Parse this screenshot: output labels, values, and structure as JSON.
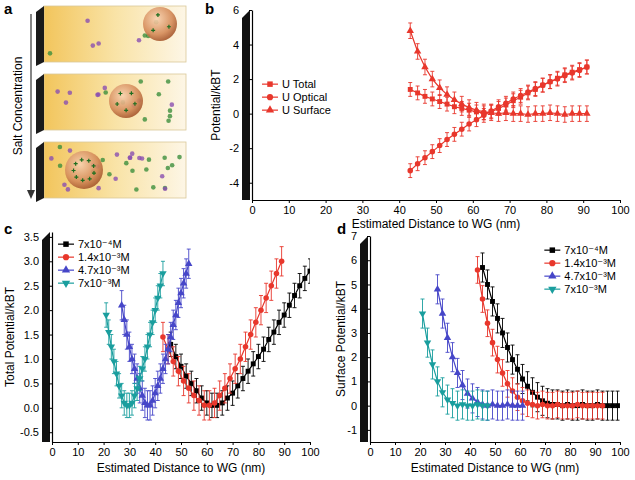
{
  "diagram": {
    "panel": "a",
    "label": "Salt Concentration"
  },
  "chart_data": [
    {
      "type": "line",
      "panel": "b",
      "x_label": "Estimated Distance to WG (nm)",
      "y_label": "Potential/kBT",
      "xlim": [
        0,
        100
      ],
      "xticks": [
        0,
        10,
        20,
        30,
        40,
        50,
        60,
        70,
        80,
        90,
        100
      ],
      "ylim": [
        -5,
        6
      ],
      "yticks": [
        -4,
        -2,
        0,
        2,
        4,
        6
      ],
      "legend": "upper left",
      "series": [
        {
          "name": "U Total",
          "color": "#e8372c",
          "marker": "square",
          "error": 0.4,
          "x": [
            43,
            45,
            47,
            49,
            51,
            53,
            55,
            57,
            59,
            61,
            63,
            65,
            67,
            69,
            71,
            73,
            75,
            77,
            79,
            81,
            83,
            85,
            87,
            89,
            91
          ],
          "values": [
            1.4,
            1.2,
            1.0,
            0.85,
            0.7,
            0.55,
            0.4,
            0.3,
            0.2,
            0.1,
            0.05,
            0.1,
            0.3,
            0.5,
            0.75,
            0.95,
            1.2,
            1.4,
            1.65,
            1.85,
            2.05,
            2.25,
            2.4,
            2.55,
            2.7
          ]
        },
        {
          "name": "U Optical",
          "color": "#e8372c",
          "marker": "circle",
          "error": 0.4,
          "x": [
            43,
            45,
            47,
            49,
            51,
            53,
            55,
            57,
            59,
            61,
            63,
            65,
            67,
            69,
            71,
            73,
            75,
            77,
            79,
            81,
            83,
            85,
            87,
            89,
            91
          ],
          "values": [
            -3.3,
            -2.9,
            -2.55,
            -2.2,
            -1.85,
            -1.5,
            -1.2,
            -0.9,
            -0.6,
            -0.35,
            -0.1,
            0.15,
            0.4,
            0.6,
            0.85,
            1.05,
            1.25,
            1.45,
            1.65,
            1.85,
            2.0,
            2.2,
            2.35,
            2.5,
            2.7
          ]
        },
        {
          "name": "U Surface",
          "color": "#e8372c",
          "marker": "triangle",
          "error": 0.45,
          "x": [
            43,
            45,
            47,
            49,
            51,
            53,
            55,
            57,
            59,
            61,
            63,
            65,
            67,
            69,
            71,
            73,
            75,
            77,
            79,
            81,
            83,
            85,
            87,
            89,
            91
          ],
          "values": [
            4.8,
            3.6,
            2.7,
            2.0,
            1.5,
            1.1,
            0.8,
            0.55,
            0.35,
            0.2,
            0.1,
            0.05,
            0.0,
            0.05,
            0.0,
            0.0,
            -0.05,
            0.0,
            0.0,
            0.05,
            0.0,
            -0.05,
            0.0,
            0.0,
            0.0
          ]
        }
      ]
    },
    {
      "type": "line",
      "panel": "c",
      "x_label": "Estimated Distance to WG (nm)",
      "y_label": "Total Potential/kBT",
      "xlim": [
        0,
        100
      ],
      "xticks": [
        0,
        10,
        20,
        30,
        40,
        50,
        60,
        70,
        80,
        90,
        100
      ],
      "ylim": [
        -0.7,
        3.6
      ],
      "yticks": [
        -0.5,
        {
          "value": 0,
          "label": "0.0"
        },
        0.5,
        {
          "value": 1,
          "label": "1.0"
        },
        1.5,
        {
          "value": 2,
          "label": "2.0"
        },
        2.5,
        {
          "value": 3,
          "label": "3.0"
        },
        3.5
      ],
      "legend": "upper left",
      "series": [
        {
          "name": "7x10⁻⁴M",
          "color": "#000000",
          "marker": "square",
          "error": 0.25,
          "x": [
            46,
            48,
            50,
            52,
            54,
            56,
            58,
            60,
            62,
            64,
            66,
            68,
            70,
            72,
            74,
            76,
            78,
            80,
            82,
            84,
            86,
            88,
            90,
            92,
            94,
            96,
            98,
            100
          ],
          "values": [
            1.3,
            1.05,
            0.85,
            0.65,
            0.5,
            0.35,
            0.2,
            0.1,
            0.05,
            0.05,
            0.1,
            0.2,
            0.3,
            0.45,
            0.6,
            0.75,
            0.9,
            1.05,
            1.2,
            1.4,
            1.55,
            1.75,
            1.9,
            2.1,
            2.3,
            2.5,
            2.65,
            2.8
          ]
        },
        {
          "name": "1.4x10⁻³M",
          "color": "#e8372c",
          "marker": "circle",
          "error": 0.3,
          "x": [
            43,
            45,
            47,
            49,
            51,
            53,
            55,
            57,
            59,
            61,
            63,
            65,
            67,
            69,
            71,
            73,
            75,
            77,
            79,
            81,
            83,
            85,
            87,
            89
          ],
          "values": [
            1.45,
            1.2,
            0.95,
            0.75,
            0.55,
            0.4,
            0.25,
            0.15,
            0.05,
            0.05,
            0.1,
            0.25,
            0.4,
            0.6,
            0.8,
            1.0,
            1.25,
            1.5,
            1.75,
            2.0,
            2.25,
            2.5,
            2.75,
            3.0
          ]
        },
        {
          "name": "4.7x10⁻³M",
          "color": "#4646c8",
          "marker": "triangle",
          "error": 0.3,
          "x": [
            27,
            28,
            29,
            30,
            31,
            32,
            33,
            34,
            35,
            36,
            37,
            38,
            39,
            40,
            41,
            42,
            43,
            44,
            45,
            46,
            47,
            48,
            49,
            50,
            51,
            52,
            53
          ],
          "values": [
            2.1,
            1.8,
            1.5,
            1.25,
            1.0,
            0.8,
            0.6,
            0.4,
            0.25,
            0.1,
            0.05,
            0.05,
            0.15,
            0.3,
            0.45,
            0.6,
            0.8,
            1.0,
            1.2,
            1.45,
            1.7,
            1.9,
            2.15,
            2.35,
            2.55,
            2.75,
            2.95
          ]
        },
        {
          "name": "7x10⁻³M",
          "color": "#1a9e9e",
          "marker": "triangle-down",
          "error": 0.25,
          "x": [
            21,
            22,
            23,
            24,
            25,
            26,
            27,
            28,
            29,
            30,
            31,
            32,
            33,
            34,
            35,
            36,
            37,
            38,
            39,
            40,
            41,
            42,
            43
          ],
          "values": [
            1.9,
            1.55,
            1.25,
            0.95,
            0.7,
            0.45,
            0.25,
            0.1,
            0.05,
            0.05,
            0.1,
            0.25,
            0.4,
            0.6,
            0.8,
            1.0,
            1.25,
            1.5,
            1.75,
            2.0,
            2.25,
            2.5,
            2.75
          ]
        }
      ]
    },
    {
      "type": "line",
      "panel": "d",
      "x_label": "Estimated Distance to WG (nm)",
      "y_label": "Surface Potential/kBT",
      "xlim": [
        0,
        100
      ],
      "xticks": [
        0,
        10,
        20,
        30,
        40,
        50,
        60,
        70,
        80,
        90,
        100
      ],
      "ylim": [
        -1.5,
        7
      ],
      "yticks": [
        -1,
        0,
        1,
        2,
        3,
        4,
        5,
        6,
        7
      ],
      "legend": "upper right",
      "series": [
        {
          "name": "7x10⁻⁴M",
          "color": "#000000",
          "marker": "square",
          "error": 0.6,
          "x": [
            45,
            47,
            49,
            51,
            53,
            55,
            57,
            59,
            61,
            63,
            65,
            67,
            69,
            71,
            73,
            75,
            77,
            79,
            81,
            83,
            85,
            87,
            89,
            91,
            93,
            95,
            97,
            99
          ],
          "values": [
            5.7,
            5.0,
            4.3,
            3.6,
            3.0,
            2.4,
            1.9,
            1.5,
            1.1,
            0.8,
            0.55,
            0.35,
            0.2,
            0.1,
            0.05,
            0.05,
            0,
            0.05,
            0,
            0,
            0.05,
            0,
            0,
            0.05,
            0,
            0,
            0,
            0
          ]
        },
        {
          "name": "1.4x10⁻³M",
          "color": "#e8372c",
          "marker": "circle",
          "error": 0.55,
          "x": [
            43,
            45,
            47,
            49,
            51,
            53,
            55,
            57,
            59,
            61,
            63,
            65,
            67,
            69,
            71,
            73,
            75,
            77,
            79,
            81,
            83,
            85,
            87,
            89,
            91,
            93
          ],
          "values": [
            5.6,
            4.4,
            3.4,
            2.6,
            1.9,
            1.35,
            0.9,
            0.6,
            0.35,
            0.2,
            0.1,
            0.05,
            0,
            0.05,
            0,
            0,
            0.05,
            0,
            0,
            0,
            0.05,
            0,
            0,
            0,
            0,
            0
          ]
        },
        {
          "name": "4.7x10⁻³M",
          "color": "#4646c8",
          "marker": "triangle",
          "error": 0.6,
          "x": [
            27,
            29,
            31,
            33,
            35,
            37,
            39,
            41,
            43,
            45,
            47,
            49,
            51,
            53,
            55,
            57,
            59,
            61
          ],
          "values": [
            4.8,
            3.8,
            2.8,
            2.0,
            1.35,
            0.85,
            0.5,
            0.3,
            0.15,
            0.05,
            0,
            0.05,
            0,
            0,
            0.05,
            0,
            0,
            0
          ]
        },
        {
          "name": "7x10⁻³M",
          "color": "#1a9e9e",
          "marker": "triangle-down",
          "error": 0.6,
          "x": [
            21,
            23,
            25,
            27,
            29,
            31,
            33,
            35,
            37,
            39,
            41,
            43,
            45,
            47
          ],
          "values": [
            3.8,
            2.6,
            1.7,
            1.0,
            0.55,
            0.25,
            0.1,
            0,
            0.05,
            0,
            0,
            0.05,
            0,
            0
          ]
        }
      ]
    }
  ]
}
